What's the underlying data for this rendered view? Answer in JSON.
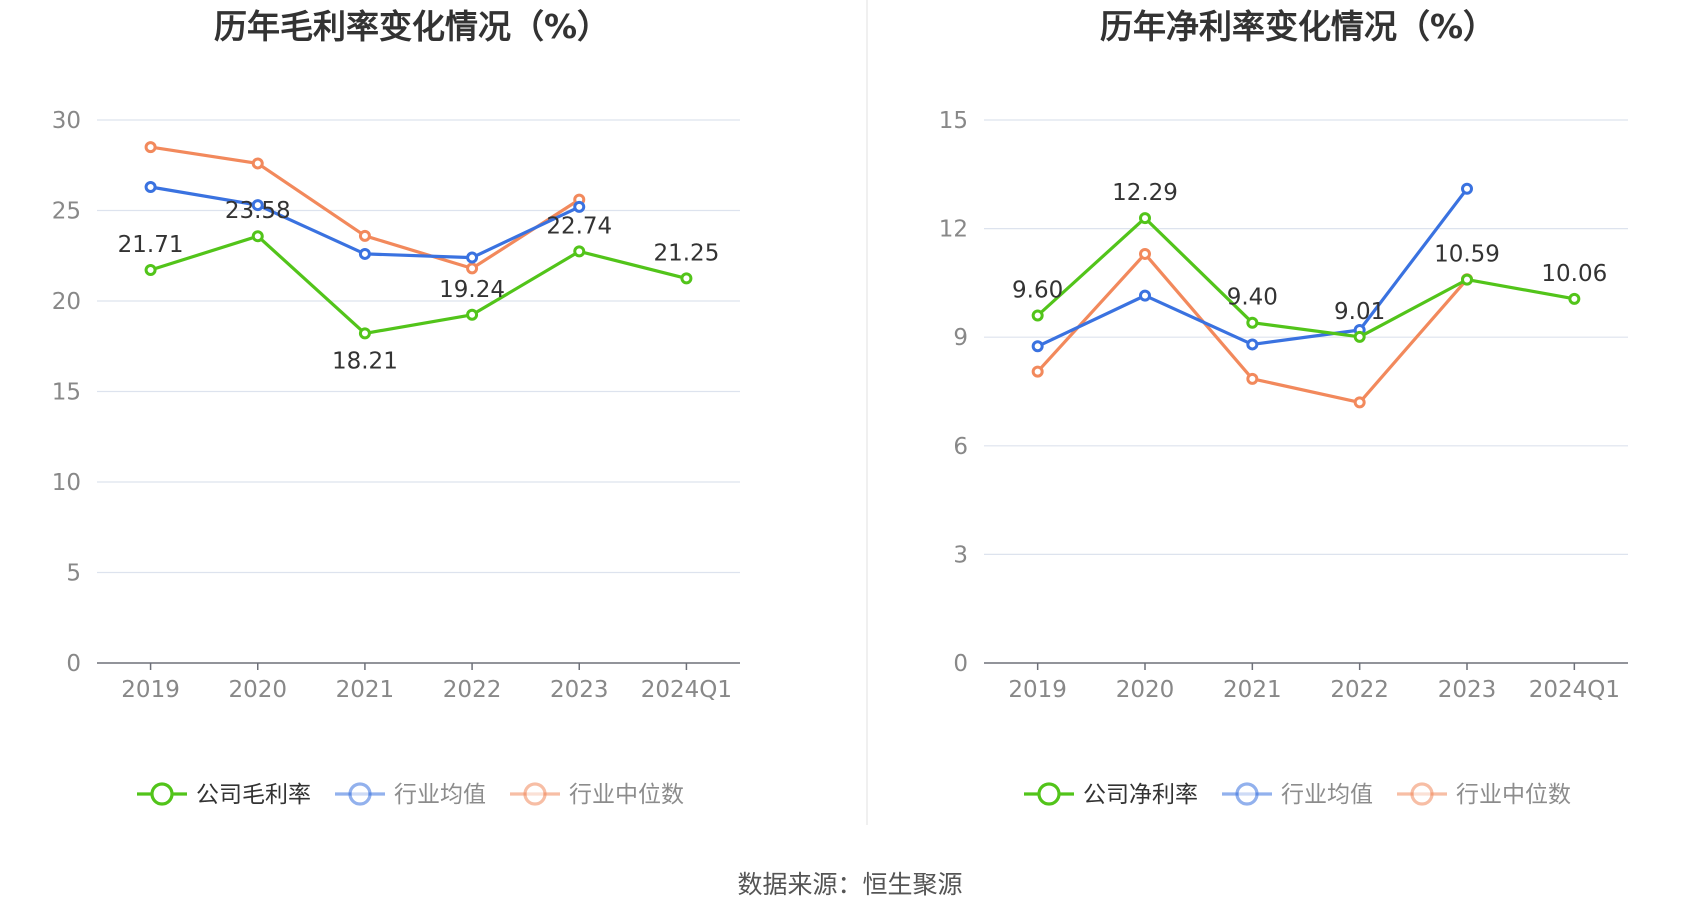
{
  "source_text": "数据来源：恒生聚源",
  "colors": {
    "company": "#52c41a",
    "avg": "#3a72e0",
    "median": "#f2895c"
  },
  "chart_data": [
    {
      "type": "line",
      "title": "历年毛利率变化情况（%）",
      "categories": [
        "2019",
        "2020",
        "2021",
        "2022",
        "2023",
        "2024Q1"
      ],
      "ylim": [
        0,
        30
      ],
      "yticks": [
        0,
        5,
        10,
        15,
        20,
        25,
        30
      ],
      "grid": true,
      "legend_position": "bottom",
      "series": [
        {
          "name": "公司毛利率",
          "key": "company",
          "values": [
            21.71,
            23.58,
            18.21,
            19.24,
            22.74,
            21.25
          ],
          "labels": [
            "21.71",
            "23.58",
            "18.21",
            "19.24",
            "22.74",
            "21.25"
          ]
        },
        {
          "name": "行业均值",
          "key": "avg",
          "values": [
            26.3,
            25.3,
            22.6,
            22.4,
            25.2,
            null
          ]
        },
        {
          "name": "行业中位数",
          "key": "median",
          "values": [
            28.5,
            27.6,
            23.6,
            21.8,
            25.6,
            null
          ]
        }
      ]
    },
    {
      "type": "line",
      "title": "历年净利率变化情况（%）",
      "categories": [
        "2019",
        "2020",
        "2021",
        "2022",
        "2023",
        "2024Q1"
      ],
      "ylim": [
        0,
        15
      ],
      "yticks": [
        0,
        3,
        6,
        9,
        12,
        15
      ],
      "grid": true,
      "legend_position": "bottom",
      "series": [
        {
          "name": "公司净利率",
          "key": "company",
          "values": [
            9.6,
            12.29,
            9.4,
            9.01,
            10.59,
            10.06
          ],
          "labels": [
            "9.60",
            "12.29",
            "9.40",
            "9.01",
            "10.59",
            "10.06"
          ]
        },
        {
          "name": "行业均值",
          "key": "avg",
          "values": [
            8.75,
            10.15,
            8.8,
            9.2,
            13.1,
            null
          ]
        },
        {
          "name": "行业中位数",
          "key": "median",
          "values": [
            8.05,
            11.3,
            7.85,
            7.2,
            10.6,
            null
          ]
        }
      ]
    }
  ]
}
